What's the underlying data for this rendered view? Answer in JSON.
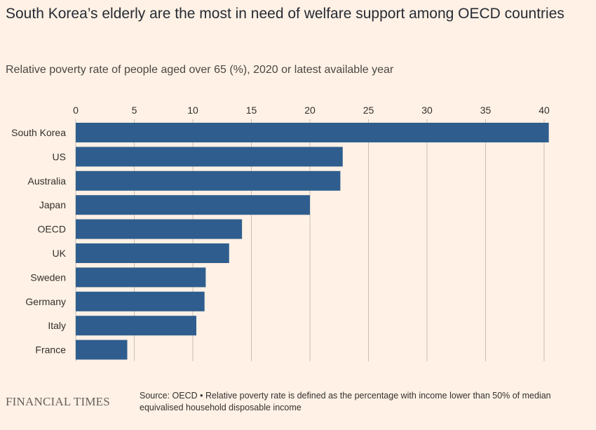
{
  "title": "South Korea’s elderly are the most in need of welfare support among OECD countries",
  "subtitle": "Relative poverty rate of people aged over 65 (%), 2020 or latest available year",
  "footer": {
    "logo": "FINANCIAL TIMES",
    "source": "Source: OECD • Relative poverty rate is defined as the percentage with income lower than 50% of median equivalised household disposable income"
  },
  "colors": {
    "background": "#FFF1E5",
    "bar": "#2F5E8E",
    "gridline": "#C9BFB6"
  },
  "chart_data": {
    "type": "bar",
    "orientation": "horizontal",
    "categories": [
      "South Korea",
      "US",
      "Australia",
      "Japan",
      "OECD",
      "UK",
      "Sweden",
      "Germany",
      "Italy",
      "France"
    ],
    "values": [
      40.4,
      22.8,
      22.6,
      20.0,
      14.2,
      13.1,
      11.1,
      11.0,
      10.3,
      4.4
    ],
    "xlim": [
      0,
      40
    ],
    "xticks": [
      0,
      5,
      10,
      15,
      20,
      25,
      30,
      35,
      40
    ],
    "xtick_labels": [
      "0",
      "5",
      "10",
      "15",
      "20",
      "25",
      "30",
      "35",
      "40"
    ],
    "grid": true,
    "axis_position": "top"
  }
}
